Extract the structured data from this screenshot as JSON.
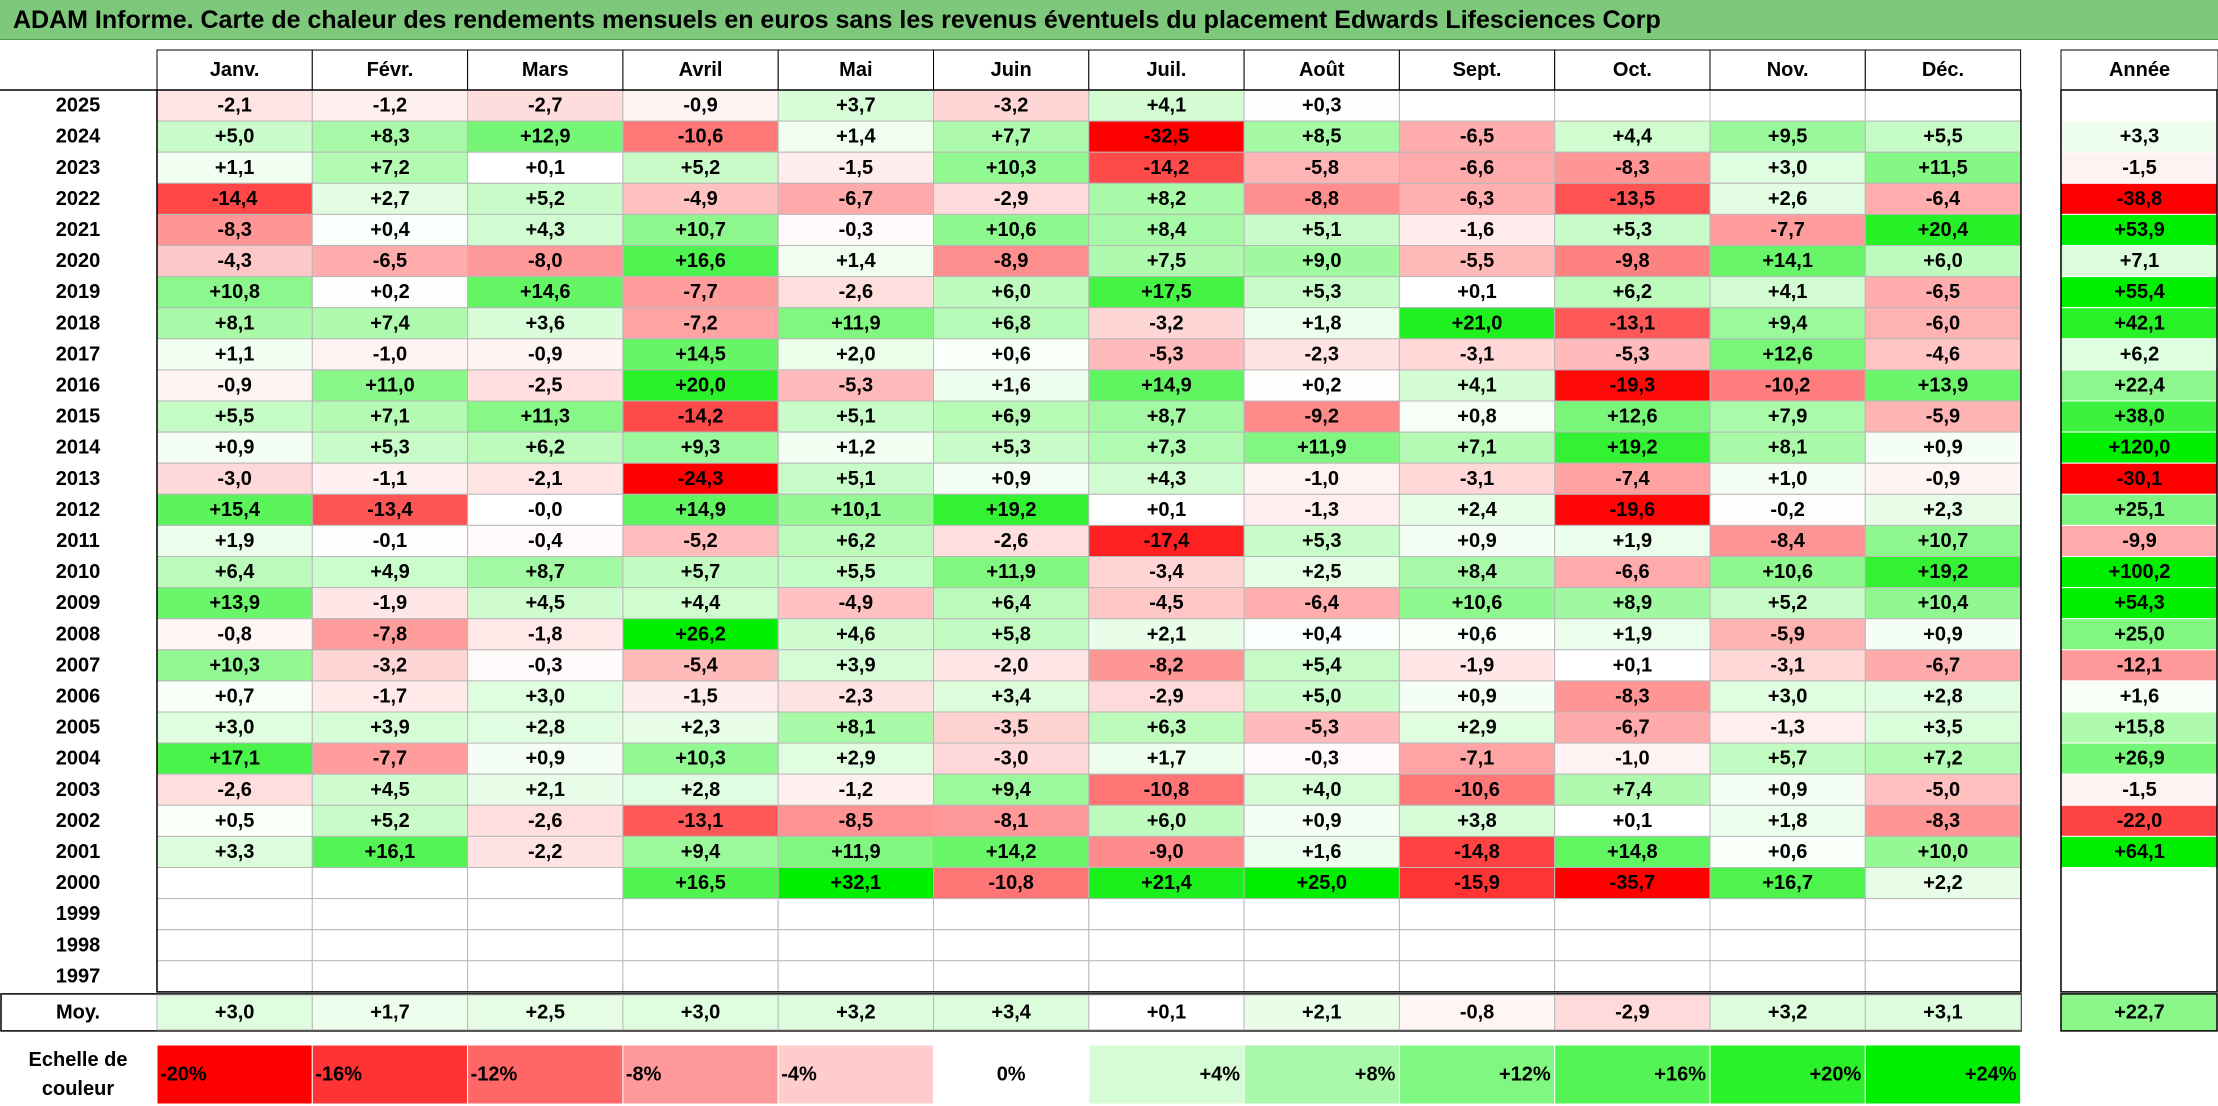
{
  "title": "ADAM Informe. Carte de chaleur des rendements mensuels en euros sans les revenus éventuels du placement Edwards Lifesciences Corp",
  "colors": {
    "title_bg": "#7dc87a",
    "negative_max": "#ff0000",
    "neutral": "#ffffff",
    "positive_max": "#00ee00"
  },
  "chart_data": {
    "type": "heatmap",
    "title": "ADAM Informe. Carte de chaleur des rendements mensuels en euros sans les revenus éventuels du placement Edwards Lifesciences Corp",
    "months": [
      "Janv.",
      "Févr.",
      "Mars",
      "Avril",
      "Mai",
      "Juin",
      "Juil.",
      "Août",
      "Sept.",
      "Oct.",
      "Nov.",
      "Déc."
    ],
    "year_header": "Année",
    "avg_label": "Moy.",
    "rows": [
      {
        "year": "2025",
        "values": [
          "-2,1",
          "-1,2",
          "-2,7",
          "-0,9",
          "+3,7",
          "-3,2",
          "+4,1",
          "+0,3",
          "",
          "",
          "",
          ""
        ],
        "annual": ""
      },
      {
        "year": "2024",
        "values": [
          "+5,0",
          "+8,3",
          "+12,9",
          "-10,6",
          "+1,4",
          "+7,7",
          "-32,5",
          "+8,5",
          "-6,5",
          "+4,4",
          "+9,5",
          "+5,5"
        ],
        "annual": "+3,3"
      },
      {
        "year": "2023",
        "values": [
          "+1,1",
          "+7,2",
          "+0,1",
          "+5,2",
          "-1,5",
          "+10,3",
          "-14,2",
          "-5,8",
          "-6,6",
          "-8,3",
          "+3,0",
          "+11,5"
        ],
        "annual": "-1,5"
      },
      {
        "year": "2022",
        "values": [
          "-14,4",
          "+2,7",
          "+5,2",
          "-4,9",
          "-6,7",
          "-2,9",
          "+8,2",
          "-8,8",
          "-6,3",
          "-13,5",
          "+2,6",
          "-6,4"
        ],
        "annual": "-38,8"
      },
      {
        "year": "2021",
        "values": [
          "-8,3",
          "+0,4",
          "+4,3",
          "+10,7",
          "-0,3",
          "+10,6",
          "+8,4",
          "+5,1",
          "-1,6",
          "+5,3",
          "-7,7",
          "+20,4"
        ],
        "annual": "+53,9"
      },
      {
        "year": "2020",
        "values": [
          "-4,3",
          "-6,5",
          "-8,0",
          "+16,6",
          "+1,4",
          "-8,9",
          "+7,5",
          "+9,0",
          "-5,5",
          "-9,8",
          "+14,1",
          "+6,0"
        ],
        "annual": "+7,1"
      },
      {
        "year": "2019",
        "values": [
          "+10,8",
          "+0,2",
          "+14,6",
          "-7,7",
          "-2,6",
          "+6,0",
          "+17,5",
          "+5,3",
          "+0,1",
          "+6,2",
          "+4,1",
          "-6,5"
        ],
        "annual": "+55,4"
      },
      {
        "year": "2018",
        "values": [
          "+8,1",
          "+7,4",
          "+3,6",
          "-7,2",
          "+11,9",
          "+6,8",
          "-3,2",
          "+1,8",
          "+21,0",
          "-13,1",
          "+9,4",
          "-6,0"
        ],
        "annual": "+42,1"
      },
      {
        "year": "2017",
        "values": [
          "+1,1",
          "-1,0",
          "-0,9",
          "+14,5",
          "+2,0",
          "+0,6",
          "-5,3",
          "-2,3",
          "-3,1",
          "-5,3",
          "+12,6",
          "-4,6"
        ],
        "annual": "+6,2"
      },
      {
        "year": "2016",
        "values": [
          "-0,9",
          "+11,0",
          "-2,5",
          "+20,0",
          "-5,3",
          "+1,6",
          "+14,9",
          "+0,2",
          "+4,1",
          "-19,3",
          "-10,2",
          "+13,9"
        ],
        "annual": "+22,4"
      },
      {
        "year": "2015",
        "values": [
          "+5,5",
          "+7,1",
          "+11,3",
          "-14,2",
          "+5,1",
          "+6,9",
          "+8,7",
          "-9,2",
          "+0,8",
          "+12,6",
          "+7,9",
          "-5,9"
        ],
        "annual": "+38,0"
      },
      {
        "year": "2014",
        "values": [
          "+0,9",
          "+5,3",
          "+6,2",
          "+9,3",
          "+1,2",
          "+5,3",
          "+7,3",
          "+11,9",
          "+7,1",
          "+19,2",
          "+8,1",
          "+0,9"
        ],
        "annual": "+120,0"
      },
      {
        "year": "2013",
        "values": [
          "-3,0",
          "-1,1",
          "-2,1",
          "-24,3",
          "+5,1",
          "+0,9",
          "+4,3",
          "-1,0",
          "-3,1",
          "-7,4",
          "+1,0",
          "-0,9"
        ],
        "annual": "-30,1"
      },
      {
        "year": "2012",
        "values": [
          "+15,4",
          "-13,4",
          "-0,0",
          "+14,9",
          "+10,1",
          "+19,2",
          "+0,1",
          "-1,3",
          "+2,4",
          "-19,6",
          "-0,2",
          "+2,3"
        ],
        "annual": "+25,1"
      },
      {
        "year": "2011",
        "values": [
          "+1,9",
          "-0,1",
          "-0,4",
          "-5,2",
          "+6,2",
          "-2,6",
          "-17,4",
          "+5,3",
          "+0,9",
          "+1,9",
          "-8,4",
          "+10,7"
        ],
        "annual": "-9,9"
      },
      {
        "year": "2010",
        "values": [
          "+6,4",
          "+4,9",
          "+8,7",
          "+5,7",
          "+5,5",
          "+11,9",
          "-3,4",
          "+2,5",
          "+8,4",
          "-6,6",
          "+10,6",
          "+19,2"
        ],
        "annual": "+100,2"
      },
      {
        "year": "2009",
        "values": [
          "+13,9",
          "-1,9",
          "+4,5",
          "+4,4",
          "-4,9",
          "+6,4",
          "-4,5",
          "-6,4",
          "+10,6",
          "+8,9",
          "+5,2",
          "+10,4"
        ],
        "annual": "+54,3"
      },
      {
        "year": "2008",
        "values": [
          "-0,8",
          "-7,8",
          "-1,8",
          "+26,2",
          "+4,6",
          "+5,8",
          "+2,1",
          "+0,4",
          "+0,6",
          "+1,9",
          "-5,9",
          "+0,9"
        ],
        "annual": "+25,0"
      },
      {
        "year": "2007",
        "values": [
          "+10,3",
          "-3,2",
          "-0,3",
          "-5,4",
          "+3,9",
          "-2,0",
          "-8,2",
          "+5,4",
          "-1,9",
          "+0,1",
          "-3,1",
          "-6,7"
        ],
        "annual": "-12,1"
      },
      {
        "year": "2006",
        "values": [
          "+0,7",
          "-1,7",
          "+3,0",
          "-1,5",
          "-2,3",
          "+3,4",
          "-2,9",
          "+5,0",
          "+0,9",
          "-8,3",
          "+3,0",
          "+2,8"
        ],
        "annual": "+1,6"
      },
      {
        "year": "2005",
        "values": [
          "+3,0",
          "+3,9",
          "+2,8",
          "+2,3",
          "+8,1",
          "-3,5",
          "+6,3",
          "-5,3",
          "+2,9",
          "-6,7",
          "-1,3",
          "+3,5"
        ],
        "annual": "+15,8"
      },
      {
        "year": "2004",
        "values": [
          "+17,1",
          "-7,7",
          "+0,9",
          "+10,3",
          "+2,9",
          "-3,0",
          "+1,7",
          "-0,3",
          "-7,1",
          "-1,0",
          "+5,7",
          "+7,2"
        ],
        "annual": "+26,9"
      },
      {
        "year": "2003",
        "values": [
          "-2,6",
          "+4,5",
          "+2,1",
          "+2,8",
          "-1,2",
          "+9,4",
          "-10,8",
          "+4,0",
          "-10,6",
          "+7,4",
          "+0,9",
          "-5,0"
        ],
        "annual": "-1,5"
      },
      {
        "year": "2002",
        "values": [
          "+0,5",
          "+5,2",
          "-2,6",
          "-13,1",
          "-8,5",
          "-8,1",
          "+6,0",
          "+0,9",
          "+3,8",
          "+0,1",
          "+1,8",
          "-8,3"
        ],
        "annual": "-22,0"
      },
      {
        "year": "2001",
        "values": [
          "+3,3",
          "+16,1",
          "-2,2",
          "+9,4",
          "+11,9",
          "+14,2",
          "-9,0",
          "+1,6",
          "-14,8",
          "+14,8",
          "+0,6",
          "+10,0"
        ],
        "annual": "+64,1"
      },
      {
        "year": "2000",
        "values": [
          "",
          "",
          "",
          "+16,5",
          "+32,1",
          "-10,8",
          "+21,4",
          "+25,0",
          "-15,9",
          "-35,7",
          "+16,7",
          "+2,2"
        ],
        "annual": ""
      },
      {
        "year": "1999",
        "values": [
          "",
          "",
          "",
          "",
          "",
          "",
          "",
          "",
          "",
          "",
          "",
          ""
        ],
        "annual": ""
      },
      {
        "year": "1998",
        "values": [
          "",
          "",
          "",
          "",
          "",
          "",
          "",
          "",
          "",
          "",
          "",
          ""
        ],
        "annual": ""
      },
      {
        "year": "1997",
        "values": [
          "",
          "",
          "",
          "",
          "",
          "",
          "",
          "",
          "",
          "",
          "",
          ""
        ],
        "annual": ""
      }
    ],
    "averages": [
      "+3,0",
      "+1,7",
      "+2,5",
      "+3,0",
      "+3,2",
      "+3,4",
      "+0,1",
      "+2,1",
      "-0,8",
      "-2,9",
      "+3,2",
      "+3,1"
    ],
    "average_annual": "+22,7",
    "scale_label_line1": "Echelle de",
    "scale_label_line2": "couleur",
    "scale_labels": [
      "-20%",
      "-16%",
      "-12%",
      "-8%",
      "-4%",
      "0%",
      "+4%",
      "+8%",
      "+12%",
      "+16%",
      "+20%",
      "+24%"
    ],
    "scale_values": [
      -20,
      -16,
      -12,
      -8,
      -4,
      0,
      4,
      8,
      12,
      16,
      20,
      24
    ]
  }
}
